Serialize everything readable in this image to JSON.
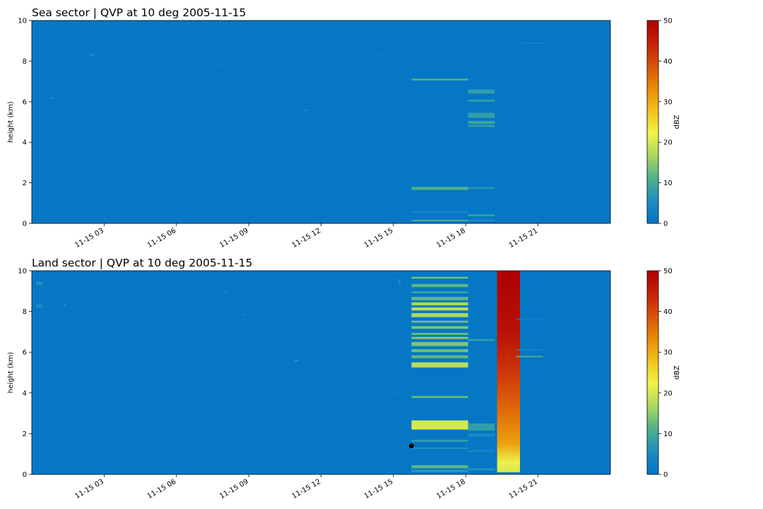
{
  "chart_data": [
    {
      "type": "heatmap",
      "title": "Sea sector  |  QVP at 10 deg 2005-11-15",
      "xlabel": "",
      "ylabel": "height (km)",
      "colorbar_label": "dBZ",
      "xlim": [
        0,
        24
      ],
      "ylim": [
        0,
        10
      ],
      "x_ticks": [
        3,
        6,
        9,
        12,
        15,
        18,
        21
      ],
      "x_tick_labels": [
        "11-15 03",
        "11-15 06",
        "11-15 09",
        "11-15 12",
        "11-15 15",
        "11-15 18",
        "11-15 21"
      ],
      "y_ticks": [
        0,
        2,
        4,
        6,
        8,
        10
      ],
      "y_tick_labels": [
        "0",
        "2",
        "4",
        "6",
        "8",
        "10"
      ],
      "colorbar_range": [
        0,
        50
      ],
      "colorbar_ticks": [
        0,
        10,
        20,
        30,
        40,
        50
      ],
      "colorbar_tick_labels": [
        "0",
        "10",
        "20",
        "30",
        "40",
        "50"
      ],
      "colormap": [
        "#0072c6",
        "#1c8ec0",
        "#4fb08c",
        "#a8d860",
        "#f0f24a",
        "#f2c21c",
        "#e88a08",
        "#d85208",
        "#c42008",
        "#ad0000"
      ],
      "background_dbz": 1,
      "grid": false,
      "features": [
        {
          "t0": 15.75,
          "t1": 18.1,
          "h0": 7.05,
          "h1": 7.13,
          "dbz": 12
        },
        {
          "t0": 15.75,
          "t1": 18.1,
          "h0": 1.65,
          "h1": 1.8,
          "dbz": 11
        },
        {
          "t0": 15.75,
          "t1": 18.1,
          "h0": 0.1,
          "h1": 0.18,
          "dbz": 10
        },
        {
          "t0": 15.75,
          "t1": 18.1,
          "h0": 0.55,
          "h1": 0.6,
          "dbz": 5
        },
        {
          "t0": 18.1,
          "t1": 19.2,
          "h0": 6.4,
          "h1": 6.6,
          "dbz": 8
        },
        {
          "t0": 18.1,
          "t1": 19.2,
          "h0": 6.0,
          "h1": 6.1,
          "dbz": 8
        },
        {
          "t0": 18.1,
          "t1": 19.2,
          "h0": 5.2,
          "h1": 5.45,
          "dbz": 8
        },
        {
          "t0": 18.1,
          "t1": 19.2,
          "h0": 4.9,
          "h1": 5.05,
          "dbz": 9
        },
        {
          "t0": 18.1,
          "t1": 19.2,
          "h0": 4.75,
          "h1": 4.85,
          "dbz": 8
        },
        {
          "t0": 18.1,
          "t1": 19.2,
          "h0": 1.7,
          "h1": 1.78,
          "dbz": 7
        },
        {
          "t0": 18.1,
          "t1": 19.2,
          "h0": 0.35,
          "h1": 0.45,
          "dbz": 8
        },
        {
          "t0": 18.1,
          "t1": 19.2,
          "h0": 0.12,
          "h1": 0.18,
          "dbz": 6
        },
        {
          "t0": 2.4,
          "t1": 2.6,
          "h0": 8.28,
          "h1": 8.35,
          "dbz": 6
        },
        {
          "t0": 0.8,
          "t1": 0.95,
          "h0": 6.15,
          "h1": 6.22,
          "dbz": 6
        },
        {
          "t0": 11.3,
          "t1": 11.42,
          "h0": 5.55,
          "h1": 5.62,
          "dbz": 6
        },
        {
          "t0": 7.75,
          "t1": 7.9,
          "h0": 7.82,
          "h1": 7.88,
          "dbz": 5
        },
        {
          "t0": 20.3,
          "t1": 21.4,
          "h0": 8.85,
          "h1": 8.9,
          "dbz": 4
        },
        {
          "t0": 14.4,
          "t1": 14.58,
          "h0": 8.3,
          "h1": 8.35,
          "dbz": 4
        }
      ]
    },
    {
      "type": "heatmap",
      "title": "Land sector  |  QVP at 10 deg 2005-11-15",
      "xlabel": "",
      "ylabel": "height (km)",
      "colorbar_label": "dBZ",
      "xlim": [
        0,
        24
      ],
      "ylim": [
        0,
        10
      ],
      "x_ticks": [
        3,
        6,
        9,
        12,
        15,
        18,
        21
      ],
      "x_tick_labels": [
        "11-15 03",
        "11-15 06",
        "11-15 09",
        "11-15 12",
        "11-15 15",
        "11-15 18",
        "11-15 21"
      ],
      "y_ticks": [
        0,
        2,
        4,
        6,
        8,
        10
      ],
      "y_tick_labels": [
        "0",
        "2",
        "4",
        "6",
        "8",
        "10"
      ],
      "colorbar_range": [
        0,
        50
      ],
      "colorbar_ticks": [
        0,
        10,
        20,
        30,
        40,
        50
      ],
      "colorbar_tick_labels": [
        "0",
        "10",
        "20",
        "30",
        "40",
        "50"
      ],
      "colormap": [
        "#0072c6",
        "#1c8ec0",
        "#4fb08c",
        "#a8d860",
        "#f0f24a",
        "#f2c21c",
        "#e88a08",
        "#d85208",
        "#c42008",
        "#ad0000"
      ],
      "background_dbz": 1,
      "grid": false,
      "features": [
        {
          "t0": 15.75,
          "t1": 18.1,
          "h0": 9.62,
          "h1": 9.7,
          "dbz": 14
        },
        {
          "t0": 15.75,
          "t1": 18.1,
          "h0": 9.2,
          "h1": 9.35,
          "dbz": 12
        },
        {
          "t0": 15.75,
          "t1": 18.1,
          "h0": 8.9,
          "h1": 8.98,
          "dbz": 10
        },
        {
          "t0": 15.75,
          "t1": 18.1,
          "h0": 8.55,
          "h1": 8.72,
          "dbz": 12
        },
        {
          "t0": 15.75,
          "t1": 18.1,
          "h0": 8.3,
          "h1": 8.45,
          "dbz": 17
        },
        {
          "t0": 15.75,
          "t1": 18.1,
          "h0": 8.05,
          "h1": 8.2,
          "dbz": 18
        },
        {
          "t0": 15.75,
          "t1": 18.1,
          "h0": 7.72,
          "h1": 7.92,
          "dbz": 17
        },
        {
          "t0": 15.75,
          "t1": 18.1,
          "h0": 7.45,
          "h1": 7.55,
          "dbz": 13
        },
        {
          "t0": 15.75,
          "t1": 18.1,
          "h0": 7.15,
          "h1": 7.28,
          "dbz": 14
        },
        {
          "t0": 15.75,
          "t1": 18.1,
          "h0": 6.85,
          "h1": 6.95,
          "dbz": 13
        },
        {
          "t0": 15.75,
          "t1": 18.1,
          "h0": 6.65,
          "h1": 6.75,
          "dbz": 15
        },
        {
          "t0": 15.75,
          "t1": 18.1,
          "h0": 6.3,
          "h1": 6.5,
          "dbz": 14
        },
        {
          "t0": 15.75,
          "t1": 18.1,
          "h0": 6.0,
          "h1": 6.15,
          "dbz": 13
        },
        {
          "t0": 15.75,
          "t1": 18.1,
          "h0": 5.7,
          "h1": 5.85,
          "dbz": 12
        },
        {
          "t0": 15.75,
          "t1": 18.1,
          "h0": 5.25,
          "h1": 5.5,
          "dbz": 18
        },
        {
          "t0": 15.75,
          "t1": 18.1,
          "h0": 3.75,
          "h1": 3.85,
          "dbz": 12
        },
        {
          "t0": 15.75,
          "t1": 18.1,
          "h0": 2.2,
          "h1": 2.65,
          "dbz": 20
        },
        {
          "t0": 15.75,
          "t1": 18.1,
          "h0": 1.6,
          "h1": 1.7,
          "dbz": 8
        },
        {
          "t0": 15.75,
          "t1": 18.1,
          "h0": 1.25,
          "h1": 1.32,
          "dbz": 6
        },
        {
          "t0": 15.75,
          "t1": 18.1,
          "h0": 0.3,
          "h1": 0.45,
          "dbz": 12
        },
        {
          "t0": 15.75,
          "t1": 18.1,
          "h0": 0.12,
          "h1": 0.22,
          "dbz": 8
        },
        {
          "t0": 18.1,
          "t1": 19.2,
          "h0": 6.55,
          "h1": 6.65,
          "dbz": 8
        },
        {
          "t0": 18.1,
          "t1": 19.2,
          "h0": 2.15,
          "h1": 2.5,
          "dbz": 8
        },
        {
          "t0": 18.1,
          "t1": 19.2,
          "h0": 1.85,
          "h1": 2.0,
          "dbz": 5
        },
        {
          "t0": 18.1,
          "t1": 19.2,
          "h0": 1.1,
          "h1": 1.2,
          "dbz": 4
        },
        {
          "t0": 18.1,
          "t1": 19.2,
          "h0": 0.2,
          "h1": 0.3,
          "dbz": 6
        },
        {
          "t0": 20.1,
          "t1": 21.2,
          "h0": 5.75,
          "h1": 5.82,
          "dbz": 10
        },
        {
          "t0": 20.1,
          "t1": 21.2,
          "h0": 6.1,
          "h1": 6.15,
          "dbz": 5
        },
        {
          "t0": 20.1,
          "t1": 21.2,
          "h0": 7.6,
          "h1": 7.65,
          "dbz": 3
        },
        {
          "t0": 0.2,
          "t1": 0.45,
          "h0": 9.3,
          "h1": 9.45,
          "dbz": 6
        },
        {
          "t0": 0.2,
          "t1": 0.45,
          "h0": 8.2,
          "h1": 8.35,
          "dbz": 5
        },
        {
          "t0": 1.3,
          "t1": 1.42,
          "h0": 8.28,
          "h1": 8.35,
          "dbz": 6
        },
        {
          "t0": 10.9,
          "t1": 11.05,
          "h0": 5.55,
          "h1": 5.62,
          "dbz": 7
        },
        {
          "t0": 8.75,
          "t1": 8.88,
          "h0": 7.82,
          "h1": 7.88,
          "dbz": 5
        },
        {
          "t0": 7.95,
          "t1": 8.1,
          "h0": 8.9,
          "h1": 8.96,
          "dbz": 5
        },
        {
          "t0": 15.2,
          "t1": 15.3,
          "h0": 9.3,
          "h1": 9.6,
          "dbz": 4
        },
        {
          "t0": 15.0,
          "t1": 15.1,
          "h0": 3.9,
          "h1": 3.98,
          "dbz": 5
        }
      ],
      "gradient_columns": [
        {
          "t0": 19.3,
          "t1": 20.25,
          "h0": 0.1,
          "h1": 10,
          "stops": [
            [
              0.1,
              20
            ],
            [
              0.6,
              22
            ],
            [
              1.5,
              31
            ],
            [
              3.0,
              36
            ],
            [
              5.0,
              42
            ],
            [
              7.0,
              47
            ],
            [
              10,
              50
            ]
          ]
        }
      ],
      "markers": [
        {
          "t": 15.75,
          "h": 1.4
        }
      ]
    }
  ]
}
